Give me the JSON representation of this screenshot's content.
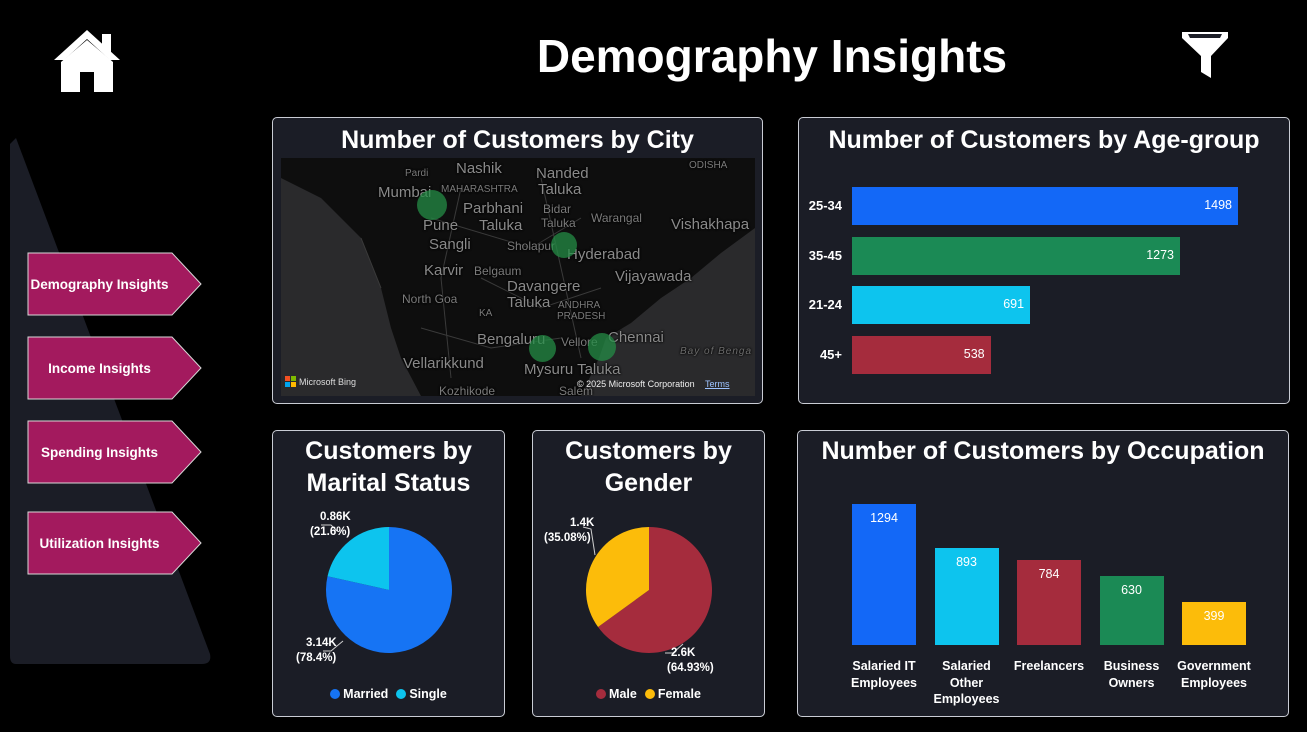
{
  "header": {
    "title": "Demography Insights",
    "home_icon": "home-icon",
    "filter_icon": "funnel-filter-icon"
  },
  "sidebar": {
    "items": [
      {
        "label": "Demography Insights"
      },
      {
        "label": "Income Insights"
      },
      {
        "label": "Spending Insights"
      },
      {
        "label": "Utilization Insights"
      }
    ],
    "button_color": "#a31a5e"
  },
  "city_map": {
    "title": "Number of Customers by City",
    "places": {
      "nashik": "Nashik",
      "pardi": "Pardi",
      "mumbai": "Mumbai",
      "maharashtra": "MAHARASHTRA",
      "nanded": "Nanded",
      "taluka1": "Taluka",
      "parbhani": "Parbhani",
      "taluka2": "Taluka",
      "bidar": "Bidar",
      "taluka3": "Taluka",
      "warangal": "Warangal",
      "vishakhapa": "Vishakhapa",
      "pune": "Pune",
      "sangli": "Sangli",
      "sholapur": "Sholapur",
      "hyderabad": "Hyderabad",
      "karvir": "Karvir",
      "belgaum": "Belgaum",
      "vijayawada": "Vijayawada",
      "north_goa": "North Goa",
      "davangere": "Davangere",
      "taluka4": "Taluka",
      "andhra": "ANDHRA",
      "pradesh": "PRADESH",
      "ka": "KA",
      "chennai": "Chennai",
      "bengaluru": "Bengaluru",
      "vellore": "Vellore",
      "bay": "Bay of Benga",
      "vellarikkund": "Vellarikkund",
      "mysuru": "Mysuru Taluka",
      "kozhikode": "Kozhikode",
      "salem": "Salem",
      "odisha": "ODISHA"
    },
    "attribution": "Microsoft Bing",
    "copyright": "© 2025 Microsoft Corporation",
    "terms": "Terms",
    "bubble_color": "#1f8a45"
  },
  "age_group": {
    "title": "Number of Customers by Age-group"
  },
  "marital": {
    "title_line1": "Customers by",
    "title_line2": "Marital Status",
    "single_value": "0.86K",
    "single_pct": "(21.6%)",
    "married_value": "3.14K",
    "married_pct": "(78.4%)",
    "legend": [
      "Married",
      "Single"
    ]
  },
  "gender": {
    "title_line1": "Customers by",
    "title_line2": "Gender",
    "female_value": "1.4K",
    "female_pct": "(35.08%)",
    "male_value": "2.6K",
    "male_pct": "(64.93%)",
    "legend": [
      "Male",
      "Female"
    ]
  },
  "occupation": {
    "title": "Number of Customers by Occupation",
    "category_lines": [
      [
        "Salaried IT",
        "Employees"
      ],
      [
        "Salaried",
        "Other",
        "Employees"
      ],
      [
        "Freelancers"
      ],
      [
        "Business",
        "Owners"
      ],
      [
        "Government",
        "Employees"
      ]
    ]
  },
  "chart_data": [
    {
      "type": "bar",
      "orientation": "horizontal",
      "title": "Number of Customers by Age-group",
      "categories": [
        "25-34",
        "35-45",
        "21-24",
        "45+"
      ],
      "values": [
        1498,
        1273,
        691,
        538
      ],
      "colors": [
        "#1368f7",
        "#1b8a55",
        "#0dc4ee",
        "#a52c3d"
      ],
      "data_labels": [
        "1498",
        "1273",
        "691",
        "538"
      ],
      "xlim": [
        0,
        1498
      ]
    },
    {
      "type": "pie",
      "title": "Customers by Marital Status",
      "categories": [
        "Married",
        "Single"
      ],
      "values": [
        3.14,
        0.86
      ],
      "percentages": [
        78.4,
        21.6
      ],
      "colors": [
        "#1674f4",
        "#0dc4ee"
      ],
      "legend": "bottom"
    },
    {
      "type": "pie",
      "title": "Customers by Gender",
      "categories": [
        "Male",
        "Female"
      ],
      "values": [
        2.6,
        1.4
      ],
      "percentages": [
        64.93,
        35.08
      ],
      "colors": [
        "#a52c3d",
        "#fcbc0a"
      ],
      "legend": "bottom"
    },
    {
      "type": "bar",
      "orientation": "vertical",
      "title": "Number of Customers by Occupation",
      "categories": [
        "Salaried IT Employees",
        "Salaried Other Employees",
        "Freelancers",
        "Business Owners",
        "Government Employees"
      ],
      "values": [
        1294,
        893,
        784,
        630,
        399
      ],
      "colors": [
        "#1368f7",
        "#0dc4ee",
        "#a52c3d",
        "#1b8a55",
        "#fcbc0a"
      ],
      "data_labels": [
        "1294",
        "893",
        "784",
        "630",
        "399"
      ],
      "ylim": [
        0,
        1294
      ]
    }
  ]
}
